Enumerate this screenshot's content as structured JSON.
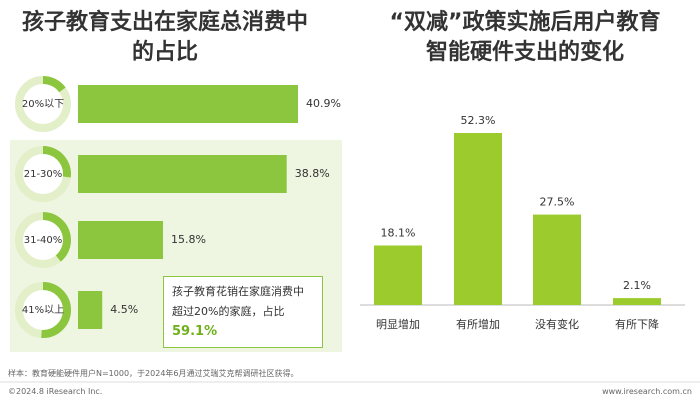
{
  "chart_data": [
    {
      "type": "hbar",
      "title": "孩子教育支出在家庭总消费中的占比",
      "categories": [
        "20%以下",
        "21-30%",
        "31-40%",
        "41%以上"
      ],
      "values": [
        40.9,
        38.8,
        15.8,
        4.5
      ],
      "value_labels": [
        "40.9%",
        "38.8%",
        "15.8%",
        "4.5%"
      ],
      "color": "#8cc63f",
      "annotation": {
        "text": "孩子教育花销在家庭消费中超过20%的家庭，占比",
        "highlight": "59.1%"
      }
    },
    {
      "type": "bar",
      "title": "“双减”政策实施后用户教育智能硬件支出的变化",
      "categories": [
        "明显增加",
        "有所增加",
        "没有变化",
        "有所下降"
      ],
      "values": [
        18.1,
        52.3,
        27.5,
        2.1
      ],
      "value_labels": [
        "18.1%",
        "52.3%",
        "27.5%",
        "2.1%"
      ],
      "color": "#9ccb2d"
    }
  ],
  "footer": {
    "note": "样本：教育硬能硬件用户N=1000，于2024年6月通过艾瑞艾克帮调研社区获得。",
    "copyright": "©2024.8 iResearch Inc.",
    "website": "www.iresearch.com.cn"
  }
}
